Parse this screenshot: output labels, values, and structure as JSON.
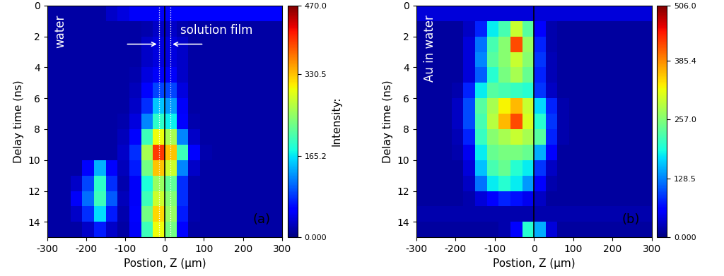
{
  "chart_data": [
    {
      "type": "heatmap",
      "color": "jet",
      "xlabel": "Postion, Z (μm)",
      "ylabel": "Delay time (ns)",
      "sample_label": "water",
      "label": "(a)",
      "film_label": "solution film",
      "film_edges": [
        -15,
        15
      ],
      "vlines": [
        0
      ],
      "xlim": [
        -300,
        300
      ],
      "ylim": [
        15,
        0
      ],
      "xticks": [
        -300,
        -200,
        -100,
        0,
        100,
        200,
        300
      ],
      "yticks": [
        0,
        2,
        4,
        6,
        8,
        10,
        12,
        14
      ],
      "x_edges": [
        -300,
        -270,
        -240,
        -210,
        -180,
        -150,
        -120,
        -90,
        -60,
        -30,
        0,
        30,
        60,
        90,
        120,
        150,
        180,
        210,
        240,
        270,
        300
      ],
      "y_edges": [
        0,
        1,
        2,
        3,
        4,
        5,
        6,
        7,
        8,
        9,
        10,
        11,
        12,
        13,
        14,
        15
      ],
      "cells": [
        [
          15,
          15,
          15,
          15,
          15,
          30,
          40,
          50,
          50,
          50,
          60,
          60,
          60,
          60,
          60,
          60,
          60,
          60,
          60,
          60
        ],
        [
          15,
          15,
          15,
          15,
          15,
          15,
          15,
          15,
          20,
          30,
          30,
          20,
          15,
          15,
          15,
          15,
          15,
          15,
          15,
          15
        ],
        [
          15,
          15,
          15,
          15,
          15,
          15,
          15,
          15,
          30,
          40,
          40,
          30,
          15,
          15,
          15,
          15,
          15,
          15,
          15,
          15
        ],
        [
          15,
          15,
          15,
          15,
          15,
          15,
          15,
          15,
          30,
          40,
          40,
          30,
          15,
          15,
          15,
          15,
          15,
          15,
          15,
          15
        ],
        [
          15,
          15,
          15,
          15,
          15,
          15,
          15,
          20,
          40,
          50,
          50,
          30,
          15,
          15,
          15,
          15,
          15,
          15,
          15,
          15
        ],
        [
          15,
          15,
          15,
          15,
          15,
          15,
          15,
          25,
          60,
          90,
          90,
          40,
          15,
          15,
          15,
          15,
          15,
          15,
          15,
          15
        ],
        [
          15,
          15,
          15,
          15,
          15,
          15,
          15,
          30,
          80,
          150,
          130,
          50,
          15,
          15,
          15,
          15,
          15,
          15,
          15,
          15
        ],
        [
          15,
          15,
          15,
          15,
          15,
          15,
          20,
          40,
          120,
          190,
          170,
          60,
          20,
          15,
          15,
          15,
          15,
          15,
          15,
          15
        ],
        [
          15,
          15,
          15,
          15,
          15,
          15,
          25,
          60,
          200,
          300,
          260,
          120,
          30,
          15,
          15,
          15,
          15,
          15,
          15,
          15
        ],
        [
          15,
          15,
          15,
          15,
          15,
          15,
          30,
          80,
          260,
          400,
          330,
          200,
          60,
          20,
          15,
          15,
          15,
          15,
          15,
          15
        ],
        [
          15,
          15,
          15,
          60,
          140,
          60,
          25,
          70,
          230,
          330,
          280,
          120,
          30,
          15,
          15,
          15,
          15,
          15,
          15,
          15
        ],
        [
          15,
          15,
          30,
          90,
          190,
          80,
          20,
          50,
          180,
          250,
          220,
          80,
          20,
          15,
          15,
          15,
          15,
          15,
          15,
          15
        ],
        [
          15,
          15,
          50,
          110,
          200,
          100,
          25,
          50,
          200,
          280,
          240,
          80,
          20,
          15,
          15,
          15,
          15,
          15,
          15,
          15
        ],
        [
          15,
          15,
          30,
          80,
          160,
          70,
          20,
          60,
          230,
          320,
          250,
          70,
          20,
          15,
          15,
          15,
          15,
          15,
          15,
          15
        ],
        [
          15,
          15,
          15,
          30,
          70,
          30,
          15,
          50,
          200,
          300,
          230,
          60,
          15,
          15,
          15,
          15,
          15,
          15,
          15,
          15
        ]
      ],
      "colorbar": {
        "range": [
          0,
          470
        ],
        "label": "Intensity:",
        "ticks": [
          {
            "value": 0,
            "label": "0.000"
          },
          165.2,
          330.5,
          {
            "value": 470,
            "label": "470.0"
          }
        ]
      }
    },
    {
      "type": "heatmap",
      "color": "jet",
      "xlabel": "Postion, Z (μm)",
      "ylabel": "Delay time (ns)",
      "sample_label": "Au in water",
      "label": "(b)",
      "vlines": [
        0
      ],
      "xlim": [
        -300,
        300
      ],
      "ylim": [
        15,
        0
      ],
      "xticks": [
        -300,
        -200,
        -100,
        0,
        100,
        200,
        300
      ],
      "yticks": [
        0,
        2,
        4,
        6,
        8,
        10,
        12,
        14
      ],
      "x_edges": [
        -300,
        -270,
        -240,
        -210,
        -180,
        -150,
        -120,
        -90,
        -60,
        -30,
        0,
        30,
        60,
        90,
        120,
        150,
        180,
        210,
        240,
        270,
        300
      ],
      "y_edges": [
        0,
        1,
        2,
        3,
        4,
        5,
        6,
        7,
        8,
        9,
        10,
        11,
        12,
        13,
        14,
        15
      ],
      "cells": [
        [
          40,
          40,
          40,
          40,
          40,
          40,
          40,
          40,
          40,
          40,
          40,
          40,
          40,
          40,
          40,
          40,
          40,
          40,
          40,
          40
        ],
        [
          15,
          15,
          15,
          15,
          30,
          80,
          180,
          220,
          300,
          230,
          60,
          20,
          15,
          15,
          15,
          15,
          15,
          15,
          15,
          15
        ],
        [
          15,
          15,
          15,
          15,
          40,
          120,
          220,
          260,
          420,
          270,
          80,
          20,
          15,
          15,
          15,
          15,
          15,
          15,
          15,
          15
        ],
        [
          15,
          15,
          15,
          15,
          40,
          130,
          230,
          260,
          300,
          260,
          90,
          25,
          15,
          15,
          15,
          15,
          15,
          15,
          15,
          15
        ],
        [
          15,
          15,
          15,
          15,
          40,
          110,
          200,
          250,
          280,
          240,
          80,
          25,
          15,
          15,
          15,
          15,
          15,
          15,
          15,
          15
        ],
        [
          15,
          15,
          15,
          20,
          80,
          180,
          230,
          220,
          210,
          200,
          90,
          30,
          15,
          15,
          15,
          15,
          15,
          15,
          15,
          15
        ],
        [
          15,
          15,
          15,
          30,
          100,
          230,
          280,
          330,
          360,
          300,
          170,
          80,
          20,
          15,
          15,
          15,
          15,
          15,
          15,
          15
        ],
        [
          15,
          15,
          15,
          30,
          100,
          220,
          290,
          360,
          420,
          310,
          200,
          90,
          20,
          15,
          15,
          15,
          15,
          15,
          15,
          15
        ],
        [
          15,
          15,
          15,
          25,
          80,
          210,
          260,
          280,
          300,
          280,
          230,
          80,
          20,
          15,
          15,
          15,
          15,
          15,
          15,
          15
        ],
        [
          15,
          15,
          15,
          20,
          50,
          180,
          240,
          250,
          250,
          240,
          150,
          60,
          15,
          15,
          15,
          15,
          15,
          15,
          15,
          15
        ],
        [
          15,
          15,
          15,
          15,
          40,
          160,
          220,
          240,
          200,
          180,
          90,
          30,
          15,
          15,
          15,
          15,
          15,
          15,
          15,
          15
        ],
        [
          15,
          15,
          15,
          15,
          30,
          120,
          180,
          200,
          180,
          140,
          60,
          20,
          15,
          15,
          15,
          15,
          15,
          15,
          15,
          15
        ],
        [
          15,
          15,
          15,
          15,
          20,
          40,
          60,
          80,
          70,
          50,
          30,
          15,
          15,
          15,
          15,
          15,
          15,
          15,
          15,
          15
        ],
        [
          20,
          20,
          20,
          20,
          20,
          20,
          20,
          20,
          20,
          20,
          20,
          20,
          20,
          20,
          20,
          20,
          20,
          20,
          20,
          20
        ],
        [
          15,
          15,
          15,
          15,
          15,
          15,
          15,
          20,
          60,
          200,
          150,
          40,
          15,
          15,
          15,
          15,
          15,
          15,
          15,
          15
        ]
      ],
      "colorbar": {
        "range": [
          0,
          506
        ],
        "ticks": [
          {
            "value": 0,
            "label": "0.000"
          },
          128.5,
          {
            "value": 257,
            "label": "257.0"
          },
          385.4,
          {
            "value": 506,
            "label": "506.0"
          }
        ]
      }
    }
  ]
}
